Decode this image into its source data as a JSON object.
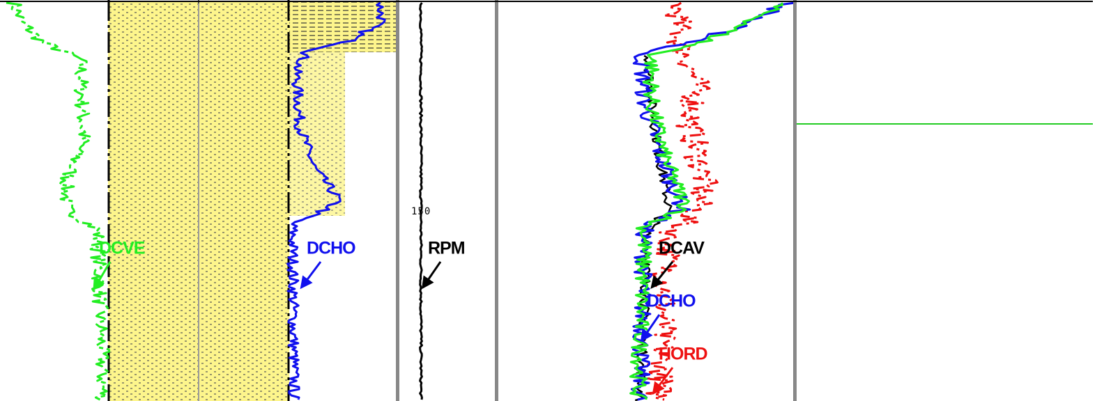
{
  "track_lithology": {
    "labels": [
      "DCVE",
      "DCHO"
    ]
  },
  "track_rpm": {
    "scale_label": "150",
    "labels": [
      "RPM"
    ]
  },
  "track_dc": {
    "labels": [
      "DCAV",
      "DCHO",
      "HORD"
    ]
  }
}
